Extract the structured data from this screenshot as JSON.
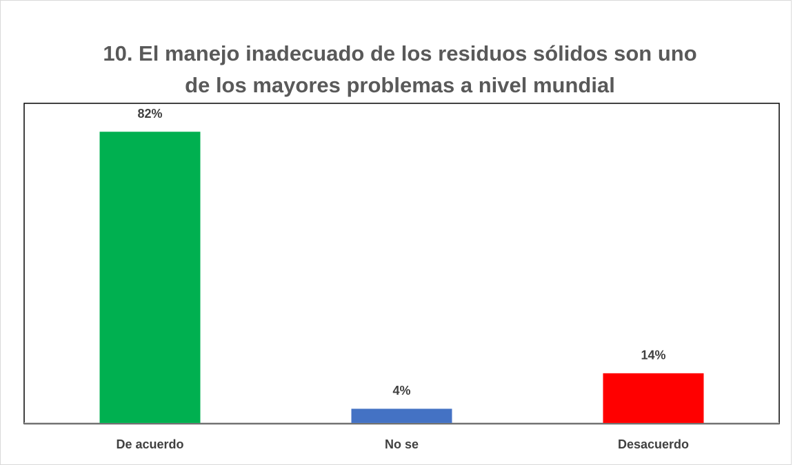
{
  "chart_data": {
    "type": "bar",
    "title": [
      "10. El manejo inadecuado de los residuos sólidos son uno",
      "de los mayores problemas a nivel mundial"
    ],
    "categories": [
      "De acuerdo",
      "No se",
      "Desacuerdo"
    ],
    "values": [
      82,
      4,
      14
    ],
    "value_labels": [
      "82%",
      "4%",
      "14%"
    ],
    "colors": [
      "#00b050",
      "#4472c4",
      "#ff0000"
    ],
    "ylim": [
      0,
      90
    ]
  }
}
